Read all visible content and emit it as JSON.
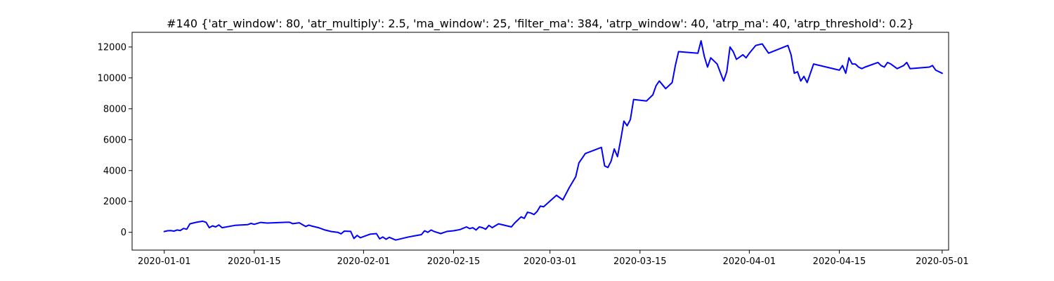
{
  "chart_data": {
    "type": "line",
    "title": "#140 {'atr_window': 80, 'atr_multiply': 2.5, 'ma_window': 25, 'filter_ma': 384, 'atrp_window': 40, 'atrp_ma': 40, 'atrp_threshold': 0.2}",
    "xlabel": "",
    "ylabel": "",
    "x_axis": {
      "scale": "date",
      "range": [
        "2019-12-27",
        "2020-05-02"
      ],
      "ticks": [
        "2020-01-01",
        "2020-01-15",
        "2020-02-01",
        "2020-02-15",
        "2020-03-01",
        "2020-03-15",
        "2020-04-01",
        "2020-04-15",
        "2020-05-01"
      ]
    },
    "y_axis": {
      "range": [
        -1150,
        12950
      ],
      "ticks": [
        0,
        2000,
        4000,
        6000,
        8000,
        10000,
        12000
      ]
    },
    "grid": false,
    "colors": {
      "line": "#0000ff",
      "axes": "#000000",
      "background": "#ffffff"
    },
    "series": [
      {
        "x": [
          "2020-01-01",
          "2020-01-01 12:00",
          "2020-01-02",
          "2020-01-02 12:00",
          "2020-01-03",
          "2020-01-03 12:00",
          "2020-01-04",
          "2020-01-04 12:00",
          "2020-01-05",
          "2020-01-06",
          "2020-01-07",
          "2020-01-07 12:00",
          "2020-01-08",
          "2020-01-08 12:00",
          "2020-01-09",
          "2020-01-09 12:00",
          "2020-01-10",
          "2020-01-12",
          "2020-01-14",
          "2020-01-14 12:00",
          "2020-01-15",
          "2020-01-16",
          "2020-01-17",
          "2020-01-20",
          "2020-01-20 12:00",
          "2020-01-21",
          "2020-01-22",
          "2020-01-23",
          "2020-01-23 12:00",
          "2020-01-24",
          "2020-01-25",
          "2020-01-26",
          "2020-01-27",
          "2020-01-28",
          "2020-01-28 12:00",
          "2020-01-29",
          "2020-01-30",
          "2020-01-30 12:00",
          "2020-01-31",
          "2020-01-31 12:00",
          "2020-02-02",
          "2020-02-03",
          "2020-02-03 12:00",
          "2020-02-04",
          "2020-02-04 12:00",
          "2020-02-05",
          "2020-02-06",
          "2020-02-08",
          "2020-02-09",
          "2020-02-10",
          "2020-02-10 12:00",
          "2020-02-11",
          "2020-02-11 12:00",
          "2020-02-12",
          "2020-02-13",
          "2020-02-14",
          "2020-02-15",
          "2020-02-16",
          "2020-02-17",
          "2020-02-17 12:00",
          "2020-02-18",
          "2020-02-18 12:00",
          "2020-02-19",
          "2020-02-19 12:00",
          "2020-02-20",
          "2020-02-20 12:00",
          "2020-02-21",
          "2020-02-22",
          "2020-02-24",
          "2020-02-24 12:00",
          "2020-02-25",
          "2020-02-25 12:00",
          "2020-02-26",
          "2020-02-26 12:00",
          "2020-02-27",
          "2020-02-27 12:00",
          "2020-02-28",
          "2020-02-28 12:00",
          "2020-02-29",
          "2020-03-02",
          "2020-03-03",
          "2020-03-04",
          "2020-03-05",
          "2020-03-05 12:00",
          "2020-03-06",
          "2020-03-06 12:00",
          "2020-03-09",
          "2020-03-09 12:00",
          "2020-03-10",
          "2020-03-10 12:00",
          "2020-03-11",
          "2020-03-11 12:00",
          "2020-03-12",
          "2020-03-12 12:00",
          "2020-03-13",
          "2020-03-13 12:00",
          "2020-03-14",
          "2020-03-16",
          "2020-03-17",
          "2020-03-17 12:00",
          "2020-03-18",
          "2020-03-19",
          "2020-03-20",
          "2020-03-20 12:00",
          "2020-03-21",
          "2020-03-24",
          "2020-03-24 12:00",
          "2020-03-25",
          "2020-03-25 12:00",
          "2020-03-26",
          "2020-03-27",
          "2020-03-28",
          "2020-03-28 12:00",
          "2020-03-29",
          "2020-03-29 12:00",
          "2020-03-30",
          "2020-03-31",
          "2020-03-31 12:00",
          "2020-04-01",
          "2020-04-02",
          "2020-04-03",
          "2020-04-04",
          "2020-04-07",
          "2020-04-07 12:00",
          "2020-04-08",
          "2020-04-08 12:00",
          "2020-04-09",
          "2020-04-09 12:00",
          "2020-04-10",
          "2020-04-11",
          "2020-04-15",
          "2020-04-15 12:00",
          "2020-04-16",
          "2020-04-16 12:00",
          "2020-04-17",
          "2020-04-17 12:00",
          "2020-04-18",
          "2020-04-18 12:00",
          "2020-04-19",
          "2020-04-21",
          "2020-04-21 12:00",
          "2020-04-22",
          "2020-04-22 12:00",
          "2020-04-23",
          "2020-04-24",
          "2020-04-24 12:00",
          "2020-04-25",
          "2020-04-25 12:00",
          "2020-04-26",
          "2020-04-29",
          "2020-04-29 12:00",
          "2020-04-30",
          "2020-05-01"
        ],
        "values": [
          50,
          100,
          110,
          80,
          150,
          120,
          250,
          200,
          550,
          650,
          720,
          650,
          300,
          420,
          350,
          480,
          300,
          450,
          500,
          580,
          520,
          640,
          600,
          650,
          650,
          560,
          620,
          380,
          470,
          400,
          300,
          150,
          50,
          0,
          -100,
          80,
          60,
          -400,
          -200,
          -350,
          -120,
          -80,
          -420,
          -300,
          -450,
          -320,
          -500,
          -300,
          -220,
          -150,
          100,
          0,
          150,
          50,
          -80,
          60,
          100,
          180,
          350,
          240,
          300,
          150,
          350,
          300,
          200,
          450,
          300,
          550,
          350,
          600,
          800,
          1000,
          900,
          1300,
          1250,
          1150,
          1350,
          1700,
          1650,
          2400,
          2100,
          2900,
          3600,
          4500,
          4800,
          5100,
          5500,
          4300,
          4200,
          4600,
          5400,
          4900,
          6000,
          7200,
          6900,
          7300,
          8600,
          8500,
          8900,
          9500,
          9800,
          9300,
          9700,
          10800,
          11700,
          11600,
          12400,
          11400,
          10700,
          11300,
          10900,
          9800,
          10400,
          12000,
          11700,
          11200,
          11500,
          11300,
          11600,
          12100,
          12200,
          11600,
          12100,
          11500,
          10300,
          10400,
          9800,
          10100,
          9700,
          10900,
          10500,
          10800,
          10300,
          11300,
          10900,
          10900,
          10700,
          10600,
          10700,
          11000,
          10800,
          10700,
          11000,
          10900,
          10600,
          10700,
          10800,
          11000,
          10600,
          10700,
          10800,
          10500,
          10300
        ]
      }
    ]
  }
}
